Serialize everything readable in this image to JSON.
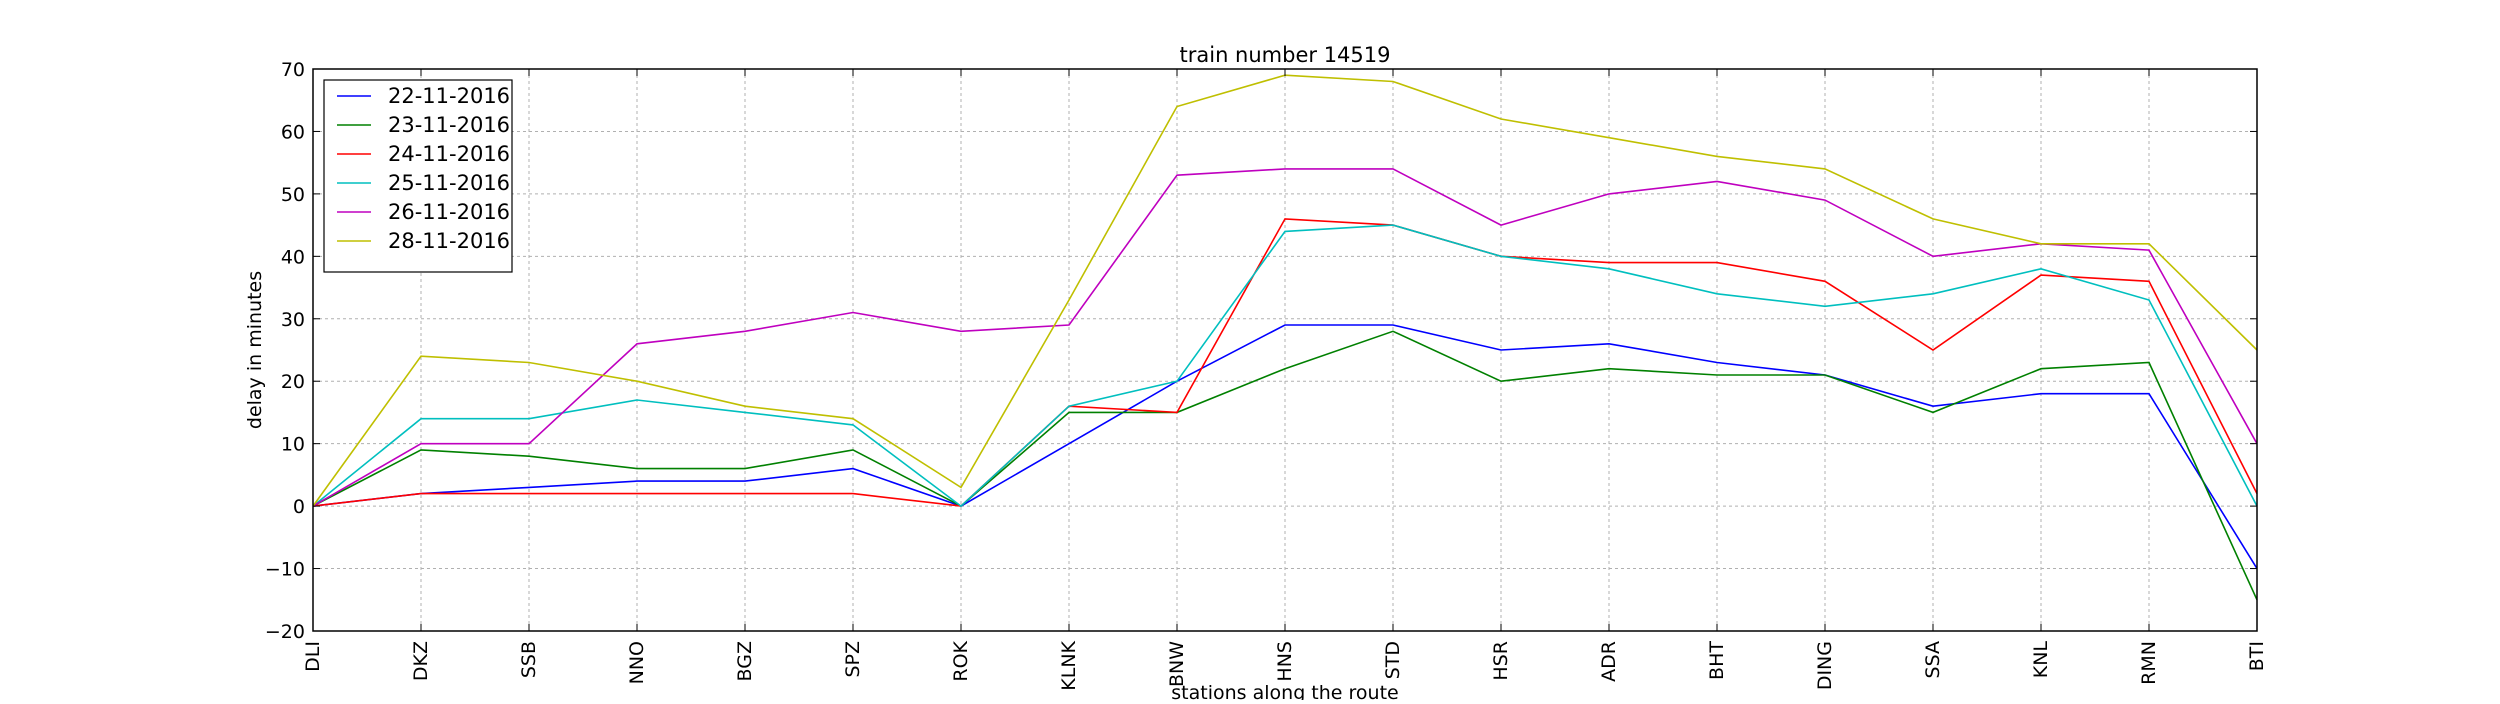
{
  "chart_data": {
    "type": "line",
    "title": "train number 14519",
    "xlabel": "stations along the route",
    "ylabel": "delay in minutes",
    "categories": [
      "DLI",
      "DKZ",
      "SSB",
      "NNO",
      "BGZ",
      "SPZ",
      "ROK",
      "KLNK",
      "BNW",
      "HNS",
      "STD",
      "HSR",
      "ADR",
      "BHT",
      "DING",
      "SSA",
      "KNL",
      "RMN",
      "BTI"
    ],
    "ylim": [
      -20,
      70
    ],
    "yticks": [
      -20,
      -10,
      0,
      10,
      20,
      30,
      40,
      50,
      60,
      70
    ],
    "yticks_labels": [
      "−20",
      "−10",
      "0",
      "10",
      "20",
      "30",
      "40",
      "50",
      "60",
      "70"
    ],
    "grid": true,
    "legend_position": "top-left",
    "series": [
      {
        "name": "22-11-2016",
        "color": "#0000ff",
        "values": [
          0,
          2,
          3,
          4,
          4,
          6,
          0,
          10,
          20,
          29,
          29,
          25,
          26,
          23,
          21,
          16,
          18,
          18,
          -10
        ]
      },
      {
        "name": "23-11-2016",
        "color": "#008000",
        "values": [
          0,
          9,
          8,
          6,
          6,
          9,
          0,
          15,
          15,
          22,
          28,
          20,
          22,
          21,
          21,
          15,
          22,
          23,
          -15
        ]
      },
      {
        "name": "24-11-2016",
        "color": "#ff0000",
        "values": [
          0,
          2,
          2,
          2,
          2,
          2,
          0,
          16,
          15,
          46,
          45,
          40,
          39,
          39,
          36,
          25,
          37,
          36,
          2
        ]
      },
      {
        "name": "25-11-2016",
        "color": "#00bfbf",
        "values": [
          0,
          14,
          14,
          17,
          15,
          13,
          0,
          16,
          20,
          44,
          45,
          40,
          38,
          34,
          32,
          34,
          38,
          33,
          0
        ]
      },
      {
        "name": "26-11-2016",
        "color": "#bf00bf",
        "values": [
          0,
          10,
          10,
          26,
          28,
          31,
          28,
          29,
          53,
          54,
          54,
          45,
          50,
          52,
          49,
          40,
          42,
          41,
          10
        ]
      },
      {
        "name": "28-11-2016",
        "color": "#bfbf00",
        "values": [
          0,
          24,
          23,
          20,
          16,
          14,
          3,
          33,
          64,
          69,
          68,
          62,
          59,
          56,
          54,
          46,
          42,
          42,
          25
        ]
      }
    ]
  }
}
